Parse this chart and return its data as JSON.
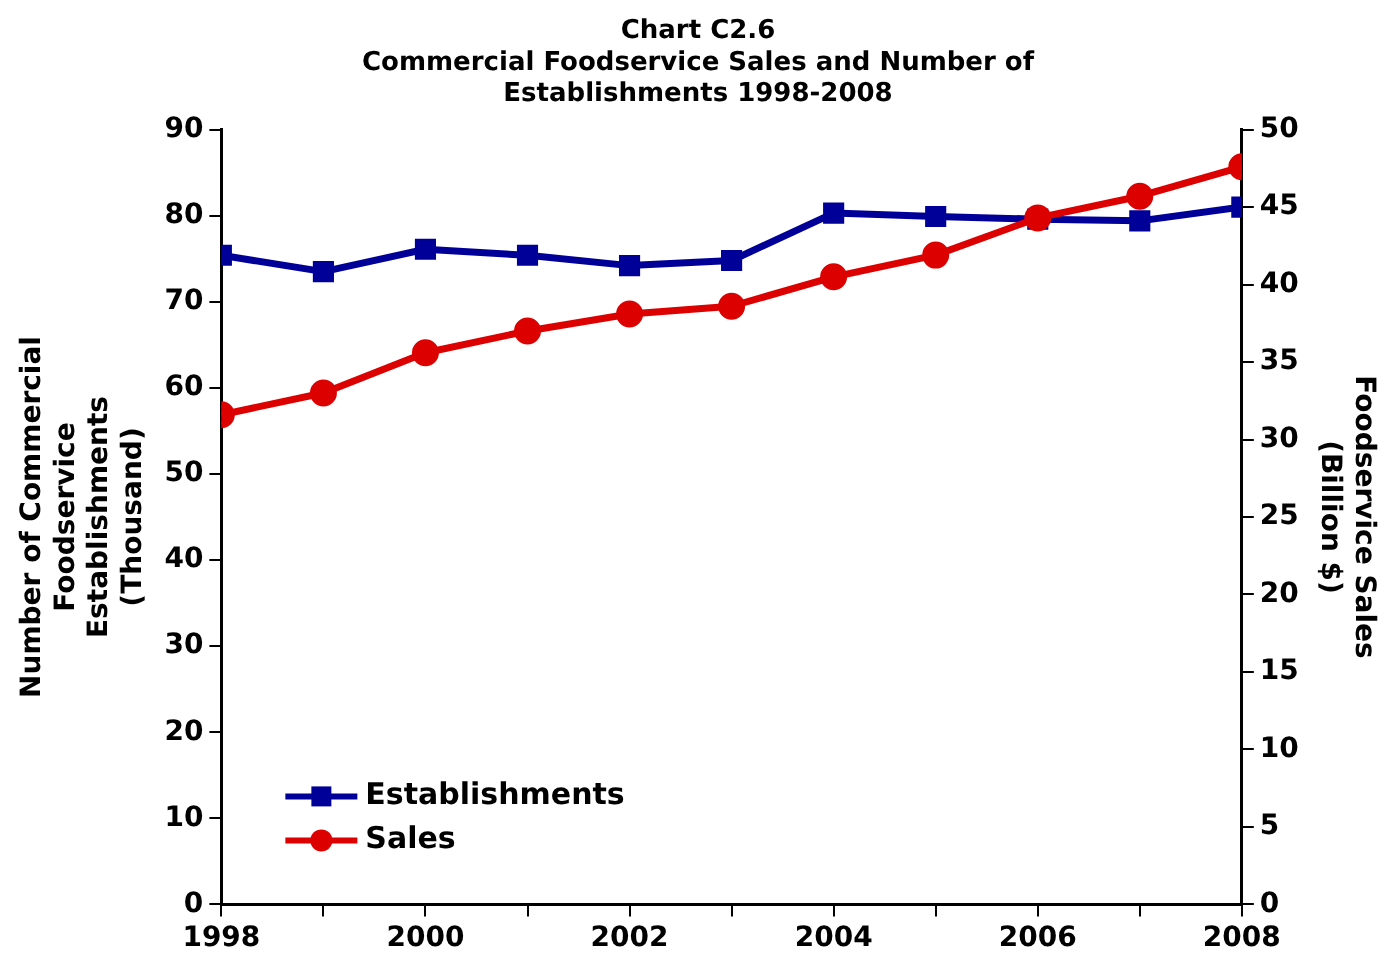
{
  "chart_data": {
    "type": "line",
    "title": "Chart C2.6",
    "subtitle": "Commercial Foodservice Sales and Number of Establishments 1998-2008",
    "ylabel": "Number of Commercial Foodservice Establishments (Thousand)",
    "y2label": "Foodservice Sales (Billion $)",
    "x": [
      1998,
      1999,
      2000,
      2001,
      2002,
      2003,
      2004,
      2005,
      2006,
      2007,
      2008
    ],
    "xlim": [
      1998,
      2008
    ],
    "xticks": [
      1998,
      {
        "value": 1999,
        "label": null
      },
      2000,
      {
        "value": 2001,
        "label": null
      },
      2002,
      {
        "value": 2003,
        "label": null
      },
      2004,
      {
        "value": 2005,
        "label": null
      },
      2006,
      {
        "value": 2007,
        "label": null
      },
      2008
    ],
    "ylim": [
      0,
      90
    ],
    "yticks": [
      0,
      10,
      20,
      30,
      40,
      50,
      60,
      70,
      80,
      90
    ],
    "y2lim": [
      0,
      50
    ],
    "y2ticks": [
      0,
      5,
      10,
      15,
      20,
      25,
      30,
      35,
      40,
      45,
      50
    ],
    "grid": false,
    "legend": "bottom left",
    "series": [
      {
        "name": "Establishments",
        "color": "#000099",
        "marker": "square",
        "values": [
          75.4,
          73.5,
          76.1,
          75.4,
          74.2,
          74.8,
          80.3,
          79.9,
          79.6,
          79.4,
          81.0
        ]
      },
      {
        "name": "Sales",
        "color": "#dd0000",
        "marker": "circle",
        "axis": "y2",
        "values": [
          31.6,
          33.0,
          35.6,
          37.0,
          38.1,
          38.6,
          40.5,
          41.9,
          44.3,
          45.7,
          47.6
        ]
      }
    ]
  }
}
